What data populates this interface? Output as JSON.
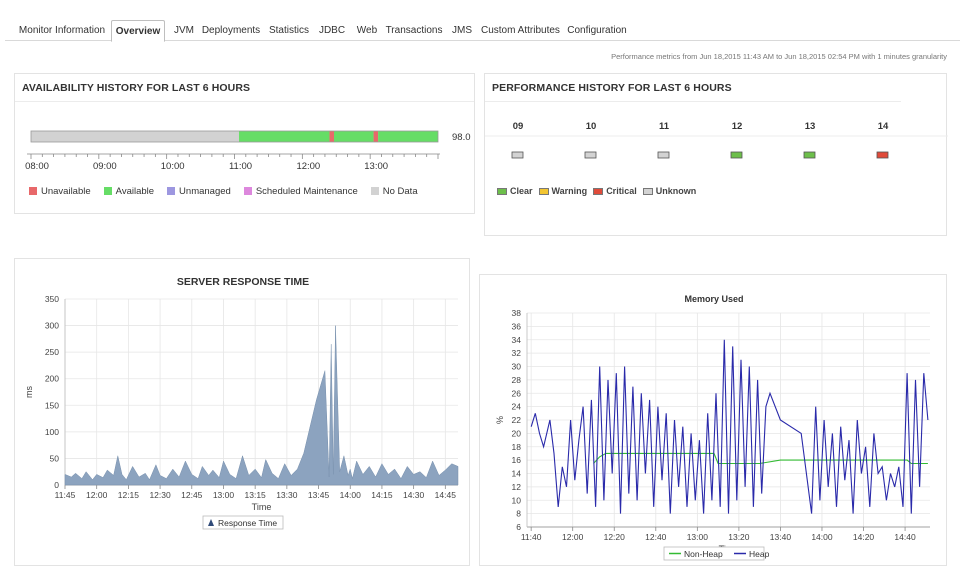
{
  "tabs": [
    {
      "label": "Monitor Information",
      "active": false
    },
    {
      "label": "Overview",
      "active": true
    },
    {
      "label": "JVM",
      "active": false
    },
    {
      "label": "Deployments",
      "active": false
    },
    {
      "label": "Statistics",
      "active": false
    },
    {
      "label": "JDBC",
      "active": false
    },
    {
      "label": "Web",
      "active": false
    },
    {
      "label": "Transactions",
      "active": false
    },
    {
      "label": "JMS",
      "active": false
    },
    {
      "label": "Custom Attributes",
      "active": false
    },
    {
      "label": "Configuration",
      "active": false
    }
  ],
  "metrics_note": "Performance metrics from Jun 18,2015 11:43 AM to Jun 18,2015 02:54 PM with 1 minutes granularity",
  "availability": {
    "title": "AVAILABILITY HISTORY FOR LAST 6 HOURS",
    "percent": "98.0",
    "ticks": [
      "08:00",
      "09:00",
      "10:00",
      "11:00",
      "12:00",
      "13:00"
    ],
    "segments": [
      {
        "status": "No Data",
        "start": "08:00",
        "end": "11:04"
      },
      {
        "status": "Available",
        "start": "11:04",
        "end": "12:24"
      },
      {
        "status": "Unavailable",
        "start": "12:24",
        "end": "12:28"
      },
      {
        "status": "Available",
        "start": "12:28",
        "end": "13:03"
      },
      {
        "status": "Unavailable",
        "start": "13:03",
        "end": "13:07"
      },
      {
        "status": "Available",
        "start": "13:07",
        "end": "14:00"
      }
    ],
    "legend": [
      {
        "label": "Unavailable",
        "color": "#e8686a"
      },
      {
        "label": "Available",
        "color": "#66dd66"
      },
      {
        "label": "Unmanaged",
        "color": "#9d97e0"
      },
      {
        "label": "Scheduled Maintenance",
        "color": "#dd88dd"
      },
      {
        "label": "No Data",
        "color": "#d2d2d2"
      }
    ]
  },
  "performance": {
    "title": "PERFORMANCE HISTORY FOR LAST 6 HOURS",
    "hours": [
      {
        "label": "09",
        "status": "Unknown"
      },
      {
        "label": "10",
        "status": "Unknown"
      },
      {
        "label": "11",
        "status": "Unknown"
      },
      {
        "label": "12",
        "status": "Clear"
      },
      {
        "label": "13",
        "status": "Clear"
      },
      {
        "label": "14",
        "status": "Critical"
      }
    ],
    "legend": [
      {
        "label": "Clear",
        "color": "#6dbf4b"
      },
      {
        "label": "Warning",
        "color": "#f2c532"
      },
      {
        "label": "Critical",
        "color": "#e04b3a"
      },
      {
        "label": "Unknown",
        "color": "#d3d3d3"
      }
    ]
  },
  "chart_data": [
    {
      "type": "area",
      "title": "SERVER RESPONSE TIME",
      "xlabel": "Time",
      "ylabel": "ms",
      "ylim": [
        0,
        350
      ],
      "yticks": [
        0,
        50,
        100,
        150,
        200,
        250,
        300,
        350
      ],
      "xticks": [
        "11:45",
        "12:00",
        "12:15",
        "12:30",
        "12:45",
        "13:00",
        "13:15",
        "13:30",
        "13:45",
        "14:00",
        "14:15",
        "14:30",
        "14:45"
      ],
      "xrange": [
        "11:45",
        "14:51"
      ],
      "grid": true,
      "legend_position": "bottom",
      "color": "#8ca3bf",
      "series": [
        {
          "name": "Response Time",
          "x": [
            "11:45",
            "11:48",
            "11:50",
            "11:53",
            "11:55",
            "11:58",
            "12:00",
            "12:03",
            "12:05",
            "12:08",
            "12:10",
            "12:12",
            "12:14",
            "12:17",
            "12:20",
            "12:23",
            "12:25",
            "12:28",
            "12:30",
            "12:33",
            "12:36",
            "12:39",
            "12:42",
            "12:45",
            "12:48",
            "12:50",
            "12:53",
            "12:55",
            "12:58",
            "13:00",
            "13:03",
            "13:06",
            "13:09",
            "13:12",
            "13:15",
            "13:18",
            "13:20",
            "13:23",
            "13:26",
            "13:29",
            "13:32",
            "13:35",
            "13:38",
            "13:41",
            "13:44",
            "13:48",
            "13:50",
            "13:51",
            "13:52",
            "13:53",
            "13:55",
            "13:57",
            "13:59",
            "14:00",
            "14:01",
            "14:03",
            "14:06",
            "14:09",
            "14:12",
            "14:15",
            "14:18",
            "14:21",
            "14:24",
            "14:27",
            "14:30",
            "14:33",
            "14:36",
            "14:39",
            "14:42",
            "14:45",
            "14:48",
            "14:51"
          ],
          "y": [
            20,
            15,
            22,
            12,
            25,
            10,
            20,
            14,
            28,
            18,
            55,
            20,
            10,
            35,
            15,
            22,
            10,
            38,
            18,
            12,
            30,
            15,
            45,
            20,
            12,
            35,
            18,
            28,
            14,
            45,
            20,
            12,
            55,
            18,
            30,
            14,
            48,
            22,
            12,
            40,
            18,
            30,
            60,
            110,
            160,
            215,
            15,
            265,
            20,
            300,
            25,
            55,
            18,
            30,
            12,
            45,
            20,
            35,
            15,
            40,
            20,
            30,
            12,
            35,
            20,
            25,
            14,
            45,
            18,
            28,
            40,
            35
          ]
        }
      ]
    },
    {
      "type": "line",
      "title": "Memory Used",
      "xlabel": "Time",
      "ylabel": "%",
      "ylim": [
        6,
        38
      ],
      "yticks": [
        6,
        8,
        10,
        12,
        14,
        16,
        18,
        20,
        22,
        24,
        26,
        28,
        30,
        32,
        34,
        36,
        38
      ],
      "xticks": [
        "11:40",
        "12:00",
        "12:20",
        "12:40",
        "13:00",
        "13:20",
        "13:40",
        "14:00",
        "14:20",
        "14:40"
      ],
      "xrange": [
        "11:38",
        "14:52"
      ],
      "grid": true,
      "legend_position": "bottom",
      "series": [
        {
          "name": "Non-Heap",
          "color": "#33bb33",
          "x": [
            "12:10",
            "12:13",
            "12:16",
            "12:20",
            "13:08",
            "13:10",
            "13:30",
            "13:40",
            "14:00",
            "14:20",
            "14:41",
            "14:43",
            "14:51"
          ],
          "y": [
            15.5,
            16.5,
            17.0,
            17.0,
            17.0,
            15.5,
            15.5,
            16.0,
            16.0,
            16.0,
            16.0,
            15.5,
            15.5
          ]
        },
        {
          "name": "Heap",
          "color": "#2a2aaa",
          "x": [
            "11:40",
            "11:42",
            "11:44",
            "11:46",
            "11:49",
            "11:51",
            "11:53",
            "11:55",
            "11:57",
            "11:59",
            "12:01",
            "12:03",
            "12:05",
            "12:07",
            "12:09",
            "12:11",
            "12:13",
            "12:15",
            "12:17",
            "12:19",
            "12:21",
            "12:23",
            "12:25",
            "12:27",
            "12:29",
            "12:31",
            "12:33",
            "12:35",
            "12:37",
            "12:39",
            "12:41",
            "12:43",
            "12:45",
            "12:47",
            "12:49",
            "12:51",
            "12:53",
            "12:55",
            "12:57",
            "12:59",
            "13:01",
            "13:03",
            "13:05",
            "13:07",
            "13:09",
            "13:11",
            "13:13",
            "13:15",
            "13:17",
            "13:19",
            "13:21",
            "13:23",
            "13:25",
            "13:27",
            "13:29",
            "13:31",
            "13:33",
            "13:35",
            "13:40",
            "13:50",
            "13:55",
            "13:57",
            "13:59",
            "14:01",
            "14:03",
            "14:05",
            "14:07",
            "14:09",
            "14:11",
            "14:13",
            "14:15",
            "14:17",
            "14:19",
            "14:21",
            "14:23",
            "14:25",
            "14:27",
            "14:29",
            "14:31",
            "14:33",
            "14:35",
            "14:37",
            "14:39",
            "14:41",
            "14:43",
            "14:45",
            "14:47",
            "14:49",
            "14:51"
          ],
          "y": [
            21,
            23,
            20,
            18,
            22,
            17,
            9,
            15,
            12,
            22,
            13,
            19,
            24,
            11,
            25,
            9,
            30,
            10,
            28,
            14,
            29,
            8,
            30,
            11,
            27,
            10,
            26,
            14,
            25,
            9,
            24,
            13,
            23,
            8,
            22,
            12,
            21,
            9,
            20,
            10,
            19,
            8,
            23,
            10,
            26,
            9,
            34,
            8,
            33,
            10,
            31,
            12,
            30,
            9,
            28,
            11,
            24,
            26,
            22,
            20,
            8,
            24,
            10,
            22,
            12,
            20,
            9,
            21,
            13,
            19,
            8,
            22,
            14,
            18,
            9,
            20,
            14,
            15,
            10,
            14,
            12,
            15,
            9,
            29,
            8,
            28,
            12,
            29,
            22
          ]
        }
      ]
    }
  ]
}
